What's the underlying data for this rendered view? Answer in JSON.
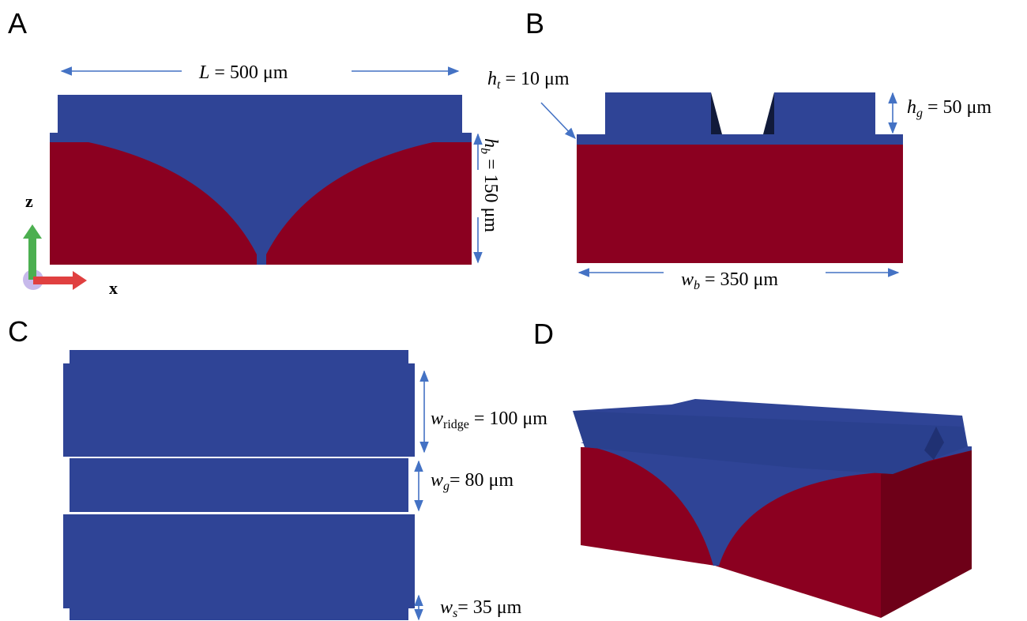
{
  "panels": [
    {
      "label": "A",
      "axes": {
        "z": "z",
        "x": "x"
      },
      "annotations": [
        {
          "symbol": "L",
          "text": " = 500 μm"
        },
        {
          "symbol": "h",
          "sub": "b",
          "text": " = 150 μm"
        }
      ]
    },
    {
      "label": "B",
      "annotations": [
        {
          "symbol": "h",
          "sub": "t",
          "text": " = 10 μm"
        },
        {
          "symbol": "h",
          "sub": "g",
          "text": " = 50 μm"
        },
        {
          "symbol": "w",
          "sub": "b",
          "text": " = 350 μm"
        }
      ]
    },
    {
      "label": "C",
      "annotations": [
        {
          "symbol": "w",
          "sub": "ridge",
          "text": " = 100 μm"
        },
        {
          "symbol": "w",
          "sub": "g",
          "text": "= 80 μm"
        },
        {
          "symbol": "w",
          "sub": "s",
          "text": "= 35 μm"
        }
      ]
    },
    {
      "label": "D"
    }
  ]
}
